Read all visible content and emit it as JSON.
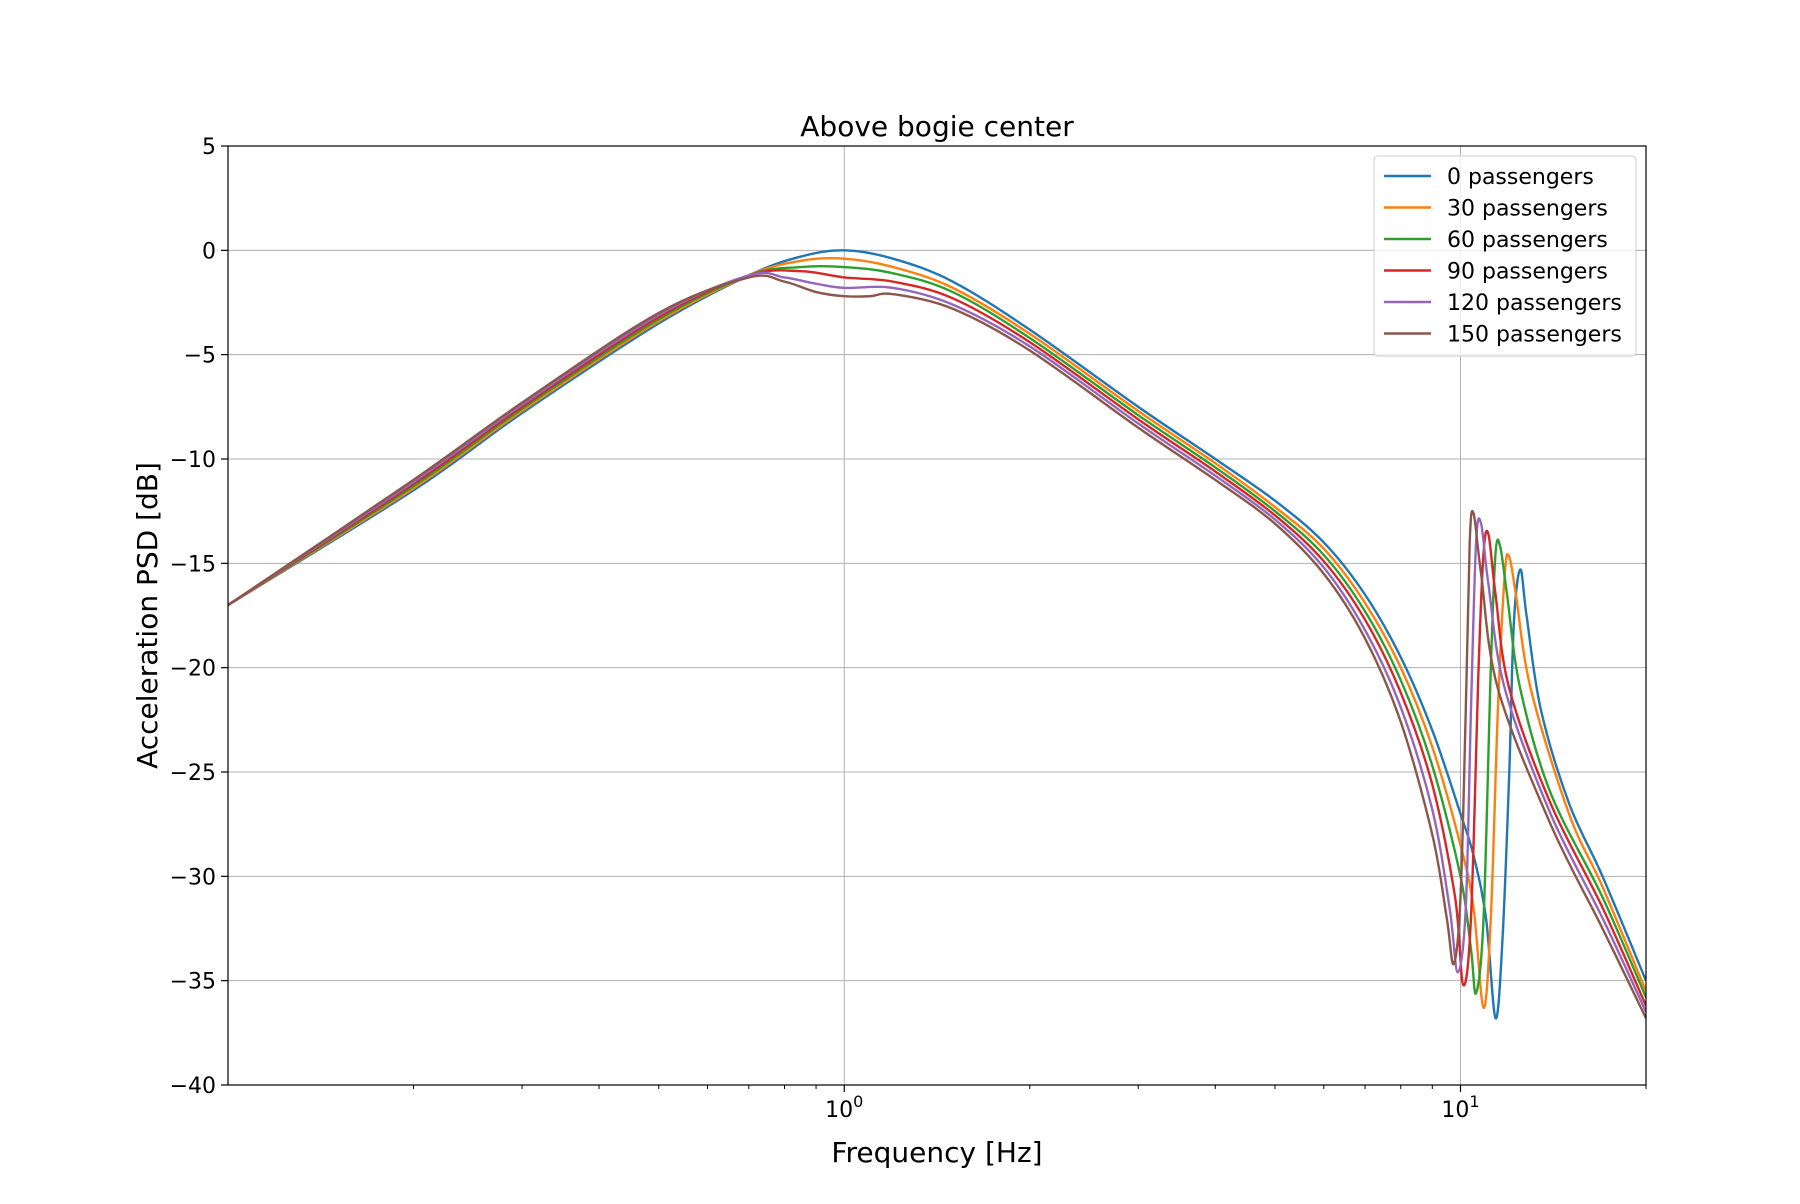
{
  "chart_data": {
    "type": "line",
    "title": "Above bogie center",
    "xlabel": "Frequency [Hz]",
    "ylabel": "Acceleration PSD [dB]",
    "xscale": "log",
    "xlim": [
      0.1,
      20
    ],
    "ylim": [
      -40,
      5
    ],
    "grid": true,
    "legend_position": "top-right",
    "xticks": [
      {
        "value": 1,
        "base": "10",
        "exp": "0"
      },
      {
        "value": 10,
        "base": "10",
        "exp": "1"
      }
    ],
    "yticks": [
      5,
      0,
      -5,
      -10,
      -15,
      -20,
      -25,
      -30,
      -35,
      -40
    ],
    "ytick_labels": [
      "5",
      "0",
      "−5",
      "−10",
      "−15",
      "−20",
      "−25",
      "−30",
      "−35",
      "−40"
    ],
    "series": [
      {
        "name": "0 passengers",
        "color": "#1f77b4",
        "points": [
          [
            0.1,
            -17.0
          ],
          [
            0.2,
            -11.5
          ],
          [
            0.3,
            -7.8
          ],
          [
            0.5,
            -3.5
          ],
          [
            0.7,
            -1.2
          ],
          [
            0.85,
            -0.3
          ],
          [
            1.0,
            0.0
          ],
          [
            1.2,
            -0.4
          ],
          [
            1.5,
            -1.5
          ],
          [
            2.0,
            -3.8
          ],
          [
            3.0,
            -7.5
          ],
          [
            4.0,
            -10.0
          ],
          [
            5.0,
            -12.0
          ],
          [
            6.0,
            -14.0
          ],
          [
            7.0,
            -16.5
          ],
          [
            8.0,
            -19.5
          ],
          [
            9.0,
            -23.0
          ],
          [
            10.0,
            -27.0
          ],
          [
            10.5,
            -29.0
          ],
          [
            11.0,
            -32.0
          ],
          [
            11.4,
            -36.8
          ],
          [
            11.7,
            -33.0
          ],
          [
            12.0,
            -25.0
          ],
          [
            12.2,
            -18.0
          ],
          [
            12.5,
            -15.3
          ],
          [
            12.8,
            -17.5
          ],
          [
            13.5,
            -22.0
          ],
          [
            15.0,
            -26.5
          ],
          [
            17.0,
            -30.0
          ],
          [
            20.0,
            -35.0
          ]
        ]
      },
      {
        "name": "30 passengers",
        "color": "#ff7f0e",
        "points": [
          [
            0.1,
            -17.0
          ],
          [
            0.2,
            -11.4
          ],
          [
            0.3,
            -7.7
          ],
          [
            0.5,
            -3.4
          ],
          [
            0.7,
            -1.2
          ],
          [
            0.85,
            -0.5
          ],
          [
            1.0,
            -0.4
          ],
          [
            1.2,
            -0.8
          ],
          [
            1.5,
            -1.8
          ],
          [
            2.0,
            -4.0
          ],
          [
            3.0,
            -7.7
          ],
          [
            4.0,
            -10.2
          ],
          [
            5.0,
            -12.3
          ],
          [
            6.0,
            -14.3
          ],
          [
            7.0,
            -16.9
          ],
          [
            8.0,
            -20.0
          ],
          [
            9.0,
            -23.8
          ],
          [
            10.0,
            -28.5
          ],
          [
            10.5,
            -31.5
          ],
          [
            10.9,
            -36.3
          ],
          [
            11.2,
            -32.0
          ],
          [
            11.5,
            -22.0
          ],
          [
            11.8,
            -15.5
          ],
          [
            12.0,
            -14.7
          ],
          [
            12.3,
            -16.5
          ],
          [
            13.0,
            -21.0
          ],
          [
            15.0,
            -27.0
          ],
          [
            17.0,
            -30.5
          ],
          [
            20.0,
            -35.5
          ]
        ]
      },
      {
        "name": "60 passengers",
        "color": "#2ca02c",
        "points": [
          [
            0.1,
            -17.0
          ],
          [
            0.2,
            -11.3
          ],
          [
            0.3,
            -7.6
          ],
          [
            0.5,
            -3.3
          ],
          [
            0.7,
            -1.2
          ],
          [
            0.85,
            -0.8
          ],
          [
            1.0,
            -0.8
          ],
          [
            1.2,
            -1.1
          ],
          [
            1.5,
            -2.0
          ],
          [
            2.0,
            -4.2
          ],
          [
            3.0,
            -7.9
          ],
          [
            4.0,
            -10.4
          ],
          [
            5.0,
            -12.5
          ],
          [
            6.0,
            -14.6
          ],
          [
            7.0,
            -17.3
          ],
          [
            8.0,
            -20.6
          ],
          [
            9.0,
            -24.7
          ],
          [
            10.0,
            -30.0
          ],
          [
            10.4,
            -33.5
          ],
          [
            10.6,
            -35.6
          ],
          [
            10.9,
            -32.0
          ],
          [
            11.2,
            -20.0
          ],
          [
            11.4,
            -14.5
          ],
          [
            11.6,
            -14.2
          ],
          [
            11.9,
            -16.5
          ],
          [
            12.5,
            -21.0
          ],
          [
            14.0,
            -26.0
          ],
          [
            17.0,
            -31.0
          ],
          [
            20.0,
            -35.8
          ]
        ]
      },
      {
        "name": "90 passengers",
        "color": "#d62728",
        "points": [
          [
            0.1,
            -17.0
          ],
          [
            0.2,
            -11.2
          ],
          [
            0.3,
            -7.5
          ],
          [
            0.5,
            -3.2
          ],
          [
            0.7,
            -1.2
          ],
          [
            0.85,
            -1.0
          ],
          [
            1.0,
            -1.3
          ],
          [
            1.2,
            -1.5
          ],
          [
            1.5,
            -2.3
          ],
          [
            2.0,
            -4.4
          ],
          [
            3.0,
            -8.1
          ],
          [
            4.0,
            -10.6
          ],
          [
            5.0,
            -12.7
          ],
          [
            6.0,
            -14.9
          ],
          [
            7.0,
            -17.7
          ],
          [
            8.0,
            -21.2
          ],
          [
            9.0,
            -25.6
          ],
          [
            9.8,
            -31.0
          ],
          [
            10.1,
            -35.2
          ],
          [
            10.4,
            -32.0
          ],
          [
            10.7,
            -20.0
          ],
          [
            10.9,
            -14.5
          ],
          [
            11.1,
            -13.6
          ],
          [
            11.4,
            -16.5
          ],
          [
            12.0,
            -21.0
          ],
          [
            14.0,
            -26.5
          ],
          [
            17.0,
            -31.5
          ],
          [
            20.0,
            -36.2
          ]
        ]
      },
      {
        "name": "120 passengers",
        "color": "#9467bd",
        "points": [
          [
            0.1,
            -17.0
          ],
          [
            0.2,
            -11.1
          ],
          [
            0.3,
            -7.4
          ],
          [
            0.5,
            -3.1
          ],
          [
            0.7,
            -1.2
          ],
          [
            0.8,
            -1.3
          ],
          [
            0.9,
            -1.6
          ],
          [
            1.0,
            -1.8
          ],
          [
            1.2,
            -1.8
          ],
          [
            1.5,
            -2.6
          ],
          [
            2.0,
            -4.6
          ],
          [
            3.0,
            -8.3
          ],
          [
            4.0,
            -10.8
          ],
          [
            5.0,
            -12.9
          ],
          [
            6.0,
            -15.2
          ],
          [
            7.0,
            -18.2
          ],
          [
            8.0,
            -21.9
          ],
          [
            9.0,
            -26.8
          ],
          [
            9.6,
            -31.5
          ],
          [
            9.9,
            -34.6
          ],
          [
            10.2,
            -31.5
          ],
          [
            10.4,
            -22.0
          ],
          [
            10.6,
            -14.0
          ],
          [
            10.8,
            -13.1
          ],
          [
            11.1,
            -16.0
          ],
          [
            11.8,
            -21.0
          ],
          [
            14.0,
            -27.0
          ],
          [
            17.0,
            -32.0
          ],
          [
            20.0,
            -36.5
          ]
        ]
      },
      {
        "name": "150 passengers",
        "color": "#8c564b",
        "points": [
          [
            0.1,
            -17.0
          ],
          [
            0.2,
            -11.0
          ],
          [
            0.3,
            -7.3
          ],
          [
            0.5,
            -3.0
          ],
          [
            0.7,
            -1.3
          ],
          [
            0.8,
            -1.5
          ],
          [
            0.9,
            -2.0
          ],
          [
            1.0,
            -2.2
          ],
          [
            1.1,
            -2.2
          ],
          [
            1.2,
            -2.1
          ],
          [
            1.5,
            -2.8
          ],
          [
            2.0,
            -4.8
          ],
          [
            3.0,
            -8.5
          ],
          [
            4.0,
            -11.0
          ],
          [
            5.0,
            -13.1
          ],
          [
            6.0,
            -15.5
          ],
          [
            7.0,
            -18.6
          ],
          [
            8.0,
            -22.6
          ],
          [
            9.0,
            -28.0
          ],
          [
            9.5,
            -32.0
          ],
          [
            9.75,
            -34.2
          ],
          [
            10.0,
            -31.0
          ],
          [
            10.2,
            -22.0
          ],
          [
            10.35,
            -14.0
          ],
          [
            10.5,
            -12.6
          ],
          [
            10.8,
            -15.5
          ],
          [
            11.5,
            -21.0
          ],
          [
            14.0,
            -27.5
          ],
          [
            17.0,
            -32.5
          ],
          [
            20.0,
            -36.8
          ]
        ]
      }
    ]
  }
}
